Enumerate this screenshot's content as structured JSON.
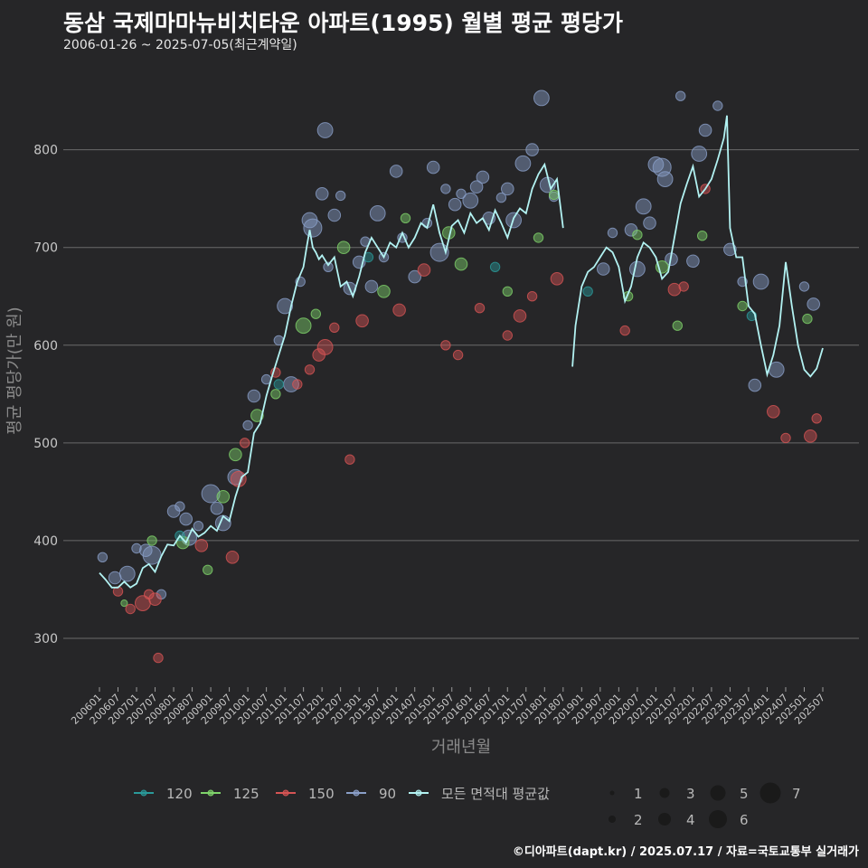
{
  "header": {
    "title": "동삼 국제마마뉴비치타운 아파트(1995) 월별 평균 평당가",
    "subtitle": "2006-01-26 ~ 2025-07-05(최근계약일)"
  },
  "caption": "©디아파트(dapt.kr) / 2025.07.17 / 자료=국토교통부 실거래가",
  "colors": {
    "background": "#262628",
    "grid": "#6a6a6a",
    "s120": "#2a9a9a",
    "s125": "#7fd36a",
    "s150": "#d65454",
    "s90": "#8a9fc8",
    "avg": "#b2f2f2"
  },
  "chart_data": {
    "type": "scatter",
    "xlabel": "거래년월",
    "ylabel": "평균 평당가(만 원)",
    "ylim": [
      250,
      870
    ],
    "yticks": [
      300,
      400,
      500,
      600,
      700,
      800
    ],
    "x_tick_labels": [
      "200601",
      "200607",
      "200701",
      "200707",
      "200801",
      "200807",
      "200901",
      "200907",
      "201001",
      "201007",
      "201101",
      "201107",
      "201201",
      "201207",
      "201301",
      "201307",
      "201401",
      "201407",
      "201501",
      "201507",
      "201601",
      "201607",
      "201701",
      "201707",
      "201801",
      "201807",
      "201901",
      "201907",
      "202001",
      "202007",
      "202101",
      "202107",
      "202201",
      "202207",
      "202301",
      "202307",
      "202401",
      "202407",
      "202501",
      "202507"
    ],
    "grid": true,
    "legend_position": "bottom",
    "legend_series": [
      {
        "name": "120",
        "color_key": "s120"
      },
      {
        "name": "125",
        "color_key": "s125"
      },
      {
        "name": "150",
        "color_key": "s150"
      },
      {
        "name": "90",
        "color_key": "s90"
      },
      {
        "name": "모든 면적대 평균값",
        "color_key": "avg"
      }
    ],
    "size_legend": [
      {
        "label": "1",
        "value": 1
      },
      {
        "label": "2",
        "value": 2
      },
      {
        "label": "3",
        "value": 3
      },
      {
        "label": "4",
        "value": 4
      },
      {
        "label": "5",
        "value": 5
      },
      {
        "label": "6",
        "value": 6
      },
      {
        "label": "7",
        "value": 7
      }
    ],
    "series": [
      {
        "name": "90",
        "color_key": "s90",
        "points": [
          [
            "2006-02",
            383,
            2
          ],
          [
            "2006-06",
            362,
            3
          ],
          [
            "2006-10",
            366,
            4
          ],
          [
            "2007-01",
            392,
            2
          ],
          [
            "2007-04",
            390,
            3
          ],
          [
            "2007-06",
            385,
            5
          ],
          [
            "2007-09",
            345,
            2
          ],
          [
            "2008-01",
            430,
            3
          ],
          [
            "2008-03",
            435,
            2
          ],
          [
            "2008-05",
            422,
            3
          ],
          [
            "2008-06",
            403,
            4
          ],
          [
            "2008-09",
            415,
            2
          ],
          [
            "2009-01",
            448,
            5
          ],
          [
            "2009-03",
            433,
            3
          ],
          [
            "2009-05",
            418,
            4
          ],
          [
            "2009-09",
            465,
            4
          ],
          [
            "2010-01",
            518,
            2
          ],
          [
            "2010-03",
            548,
            3
          ],
          [
            "2010-07",
            565,
            2
          ],
          [
            "2010-11",
            605,
            2
          ],
          [
            "2011-01",
            640,
            4
          ],
          [
            "2011-03",
            560,
            4
          ],
          [
            "2011-06",
            665,
            2
          ],
          [
            "2011-09",
            728,
            4
          ],
          [
            "2011-10",
            720,
            5
          ],
          [
            "2012-01",
            755,
            3
          ],
          [
            "2012-02",
            820,
            4
          ],
          [
            "2012-03",
            680,
            2
          ],
          [
            "2012-05",
            733,
            3
          ],
          [
            "2012-07",
            753,
            2
          ],
          [
            "2012-10",
            658,
            3
          ],
          [
            "2013-01",
            685,
            3
          ],
          [
            "2013-03",
            706,
            2
          ],
          [
            "2013-05",
            660,
            3
          ],
          [
            "2013-07",
            735,
            4
          ],
          [
            "2013-09",
            690,
            2
          ],
          [
            "2014-01",
            778,
            3
          ],
          [
            "2014-03",
            710,
            2
          ],
          [
            "2014-07",
            670,
            3
          ],
          [
            "2014-11",
            725,
            2
          ],
          [
            "2015-01",
            782,
            3
          ],
          [
            "2015-03",
            695,
            5
          ],
          [
            "2015-05",
            760,
            2
          ],
          [
            "2015-08",
            744,
            3
          ],
          [
            "2015-10",
            755,
            2
          ],
          [
            "2016-01",
            748,
            4
          ],
          [
            "2016-03",
            762,
            3
          ],
          [
            "2016-05",
            772,
            3
          ],
          [
            "2016-07",
            730,
            3
          ],
          [
            "2016-11",
            751,
            2
          ],
          [
            "2017-01",
            760,
            3
          ],
          [
            "2017-03",
            728,
            4
          ],
          [
            "2017-06",
            786,
            4
          ],
          [
            "2017-09",
            800,
            3
          ],
          [
            "2017-12",
            853,
            4
          ],
          [
            "2018-02",
            764,
            4
          ],
          [
            "2018-04",
            752,
            2
          ],
          [
            "2019-08",
            678,
            3
          ],
          [
            "2019-11",
            715,
            2
          ],
          [
            "2020-05",
            718,
            3
          ],
          [
            "2020-07",
            678,
            4
          ],
          [
            "2020-09",
            742,
            4
          ],
          [
            "2020-11",
            725,
            3
          ],
          [
            "2021-01",
            785,
            4
          ],
          [
            "2021-03",
            782,
            5
          ],
          [
            "2021-04",
            770,
            4
          ],
          [
            "2021-06",
            688,
            3
          ],
          [
            "2021-09",
            855,
            2
          ],
          [
            "2022-01",
            686,
            3
          ],
          [
            "2022-03",
            796,
            4
          ],
          [
            "2022-05",
            820,
            3
          ],
          [
            "2022-09",
            845,
            2
          ],
          [
            "2023-01",
            698,
            3
          ],
          [
            "2023-05",
            665,
            2
          ],
          [
            "2023-09",
            559,
            3
          ],
          [
            "2023-11",
            665,
            4
          ],
          [
            "2024-04",
            575,
            4
          ],
          [
            "2025-01",
            660,
            2
          ],
          [
            "2025-04",
            642,
            3
          ]
        ]
      },
      {
        "name": "125",
        "color_key": "s125",
        "points": [
          [
            "2006-09",
            336,
            1
          ],
          [
            "2007-06",
            400,
            2
          ],
          [
            "2008-04",
            398,
            3
          ],
          [
            "2008-12",
            370,
            2
          ],
          [
            "2009-05",
            445,
            3
          ],
          [
            "2009-09",
            488,
            3
          ],
          [
            "2010-04",
            528,
            3
          ],
          [
            "2010-10",
            550,
            2
          ],
          [
            "2011-07",
            620,
            4
          ],
          [
            "2011-11",
            632,
            2
          ],
          [
            "2012-08",
            700,
            3
          ],
          [
            "2013-09",
            655,
            3
          ],
          [
            "2014-04",
            730,
            2
          ],
          [
            "2015-06",
            715,
            3
          ],
          [
            "2015-10",
            683,
            3
          ],
          [
            "2017-01",
            655,
            2
          ],
          [
            "2017-11",
            710,
            2
          ],
          [
            "2018-04",
            754,
            2
          ],
          [
            "2020-04",
            650,
            2
          ],
          [
            "2020-07",
            713,
            2
          ],
          [
            "2021-03",
            680,
            3
          ],
          [
            "2021-08",
            620,
            2
          ],
          [
            "2022-04",
            712,
            2
          ],
          [
            "2023-05",
            640,
            2
          ],
          [
            "2025-02",
            627,
            2
          ]
        ]
      },
      {
        "name": "150",
        "color_key": "s150",
        "points": [
          [
            "2006-07",
            348,
            2
          ],
          [
            "2006-11",
            330,
            2
          ],
          [
            "2007-03",
            336,
            4
          ],
          [
            "2007-05",
            345,
            2
          ],
          [
            "2007-07",
            340,
            3
          ],
          [
            "2007-08",
            280,
            2
          ],
          [
            "2008-10",
            395,
            3
          ],
          [
            "2009-08",
            383,
            3
          ],
          [
            "2009-10",
            463,
            4
          ],
          [
            "2009-12",
            500,
            2
          ],
          [
            "2010-10",
            572,
            2
          ],
          [
            "2011-05",
            560,
            2
          ],
          [
            "2011-09",
            575,
            2
          ],
          [
            "2011-12",
            590,
            3
          ],
          [
            "2012-02",
            598,
            4
          ],
          [
            "2012-05",
            618,
            2
          ],
          [
            "2012-10",
            483,
            2
          ],
          [
            "2013-02",
            625,
            3
          ],
          [
            "2014-02",
            636,
            3
          ],
          [
            "2014-10",
            677,
            3
          ],
          [
            "2015-05",
            600,
            2
          ],
          [
            "2015-09",
            590,
            2
          ],
          [
            "2016-04",
            638,
            2
          ],
          [
            "2017-01",
            610,
            2
          ],
          [
            "2017-05",
            630,
            3
          ],
          [
            "2017-09",
            650,
            2
          ],
          [
            "2018-05",
            668,
            3
          ],
          [
            "2020-03",
            615,
            2
          ],
          [
            "2021-07",
            657,
            3
          ],
          [
            "2021-10",
            660,
            2
          ],
          [
            "2022-05",
            760,
            2
          ],
          [
            "2024-03",
            532,
            3
          ],
          [
            "2024-07",
            505,
            2
          ],
          [
            "2025-03",
            507,
            3
          ],
          [
            "2025-05",
            525,
            2
          ]
        ]
      },
      {
        "name": "120",
        "color_key": "s120",
        "points": [
          [
            "2008-03",
            405,
            2
          ],
          [
            "2010-11",
            560,
            2
          ],
          [
            "2013-04",
            690,
            2
          ],
          [
            "2016-09",
            680,
            2
          ],
          [
            "2019-03",
            655,
            2
          ],
          [
            "2023-08",
            630,
            2
          ]
        ]
      }
    ],
    "average_line": [
      [
        "2006-01",
        367
      ],
      [
        "2006-03",
        360
      ],
      [
        "2006-05",
        352
      ],
      [
        "2006-07",
        352
      ],
      [
        "2006-09",
        358
      ],
      [
        "2006-11",
        352
      ],
      [
        "2007-01",
        356
      ],
      [
        "2007-03",
        372
      ],
      [
        "2007-05",
        376
      ],
      [
        "2007-07",
        368
      ],
      [
        "2007-09",
        384
      ],
      [
        "2007-11",
        396
      ],
      [
        "2008-01",
        395
      ],
      [
        "2008-03",
        405
      ],
      [
        "2008-05",
        398
      ],
      [
        "2008-07",
        412
      ],
      [
        "2008-09",
        404
      ],
      [
        "2008-11",
        408
      ],
      [
        "2009-01",
        415
      ],
      [
        "2009-03",
        410
      ],
      [
        "2009-05",
        425
      ],
      [
        "2009-07",
        420
      ],
      [
        "2009-09",
        445
      ],
      [
        "2009-11",
        465
      ],
      [
        "2010-01",
        470
      ],
      [
        "2010-03",
        510
      ],
      [
        "2010-05",
        520
      ],
      [
        "2010-07",
        548
      ],
      [
        "2010-09",
        570
      ],
      [
        "2010-11",
        590
      ],
      [
        "2011-01",
        610
      ],
      [
        "2011-03",
        640
      ],
      [
        "2011-05",
        665
      ],
      [
        "2011-07",
        680
      ],
      [
        "2011-08",
        700
      ],
      [
        "2011-09",
        718
      ],
      [
        "2011-10",
        700
      ],
      [
        "2011-11",
        695
      ],
      [
        "2011-12",
        688
      ],
      [
        "2012-01",
        692
      ],
      [
        "2012-03",
        682
      ],
      [
        "2012-05",
        690
      ],
      [
        "2012-07",
        660
      ],
      [
        "2012-09",
        665
      ],
      [
        "2012-11",
        650
      ],
      [
        "2013-01",
        670
      ],
      [
        "2013-03",
        695
      ],
      [
        "2013-05",
        710
      ],
      [
        "2013-07",
        700
      ],
      [
        "2013-09",
        690
      ],
      [
        "2013-11",
        705
      ],
      [
        "2014-01",
        700
      ],
      [
        "2014-03",
        715
      ],
      [
        "2014-05",
        700
      ],
      [
        "2014-07",
        710
      ],
      [
        "2014-09",
        725
      ],
      [
        "2014-11",
        720
      ],
      [
        "2015-01",
        744
      ],
      [
        "2015-03",
        715
      ],
      [
        "2015-05",
        695
      ],
      [
        "2015-07",
        722
      ],
      [
        "2015-09",
        728
      ],
      [
        "2015-11",
        715
      ],
      [
        "2016-01",
        735
      ],
      [
        "2016-03",
        725
      ],
      [
        "2016-05",
        730
      ],
      [
        "2016-07",
        718
      ],
      [
        "2016-09",
        738
      ],
      [
        "2016-11",
        725
      ],
      [
        "2017-01",
        710
      ],
      [
        "2017-03",
        730
      ],
      [
        "2017-05",
        740
      ],
      [
        "2017-07",
        735
      ],
      [
        "2017-09",
        760
      ],
      [
        "2017-11",
        775
      ],
      [
        "2018-01",
        785
      ],
      [
        "2018-03",
        760
      ],
      [
        "2018-05",
        770
      ],
      [
        "2018-07",
        720
      ],
      null,
      [
        "2018-10",
        578
      ],
      [
        "2018-11",
        620
      ],
      [
        "2019-01",
        660
      ],
      [
        "2019-03",
        675
      ],
      [
        "2019-05",
        680
      ],
      [
        "2019-07",
        690
      ],
      [
        "2019-09",
        700
      ],
      [
        "2019-11",
        695
      ],
      [
        "2020-01",
        680
      ],
      [
        "2020-03",
        645
      ],
      [
        "2020-05",
        660
      ],
      [
        "2020-07",
        690
      ],
      [
        "2020-09",
        705
      ],
      [
        "2020-11",
        700
      ],
      [
        "2021-01",
        690
      ],
      [
        "2021-03",
        668
      ],
      [
        "2021-05",
        675
      ],
      [
        "2021-07",
        710
      ],
      [
        "2021-09",
        745
      ],
      [
        "2021-11",
        765
      ],
      [
        "2022-01",
        783
      ],
      [
        "2022-03",
        752
      ],
      [
        "2022-05",
        760
      ],
      [
        "2022-07",
        770
      ],
      [
        "2022-09",
        790
      ],
      [
        "2022-11",
        812
      ],
      [
        "2022-12",
        835
      ],
      [
        "2023-01",
        720
      ],
      [
        "2023-03",
        690
      ],
      [
        "2023-05",
        690
      ],
      [
        "2023-07",
        640
      ],
      [
        "2023-09",
        632
      ],
      [
        "2023-11",
        600
      ],
      [
        "2024-01",
        570
      ],
      [
        "2024-03",
        590
      ],
      [
        "2024-05",
        620
      ],
      [
        "2024-07",
        685
      ],
      [
        "2024-09",
        640
      ],
      [
        "2024-11",
        600
      ],
      [
        "2025-01",
        575
      ],
      [
        "2025-03",
        568
      ],
      [
        "2025-05",
        576
      ],
      [
        "2025-07",
        597
      ]
    ]
  }
}
